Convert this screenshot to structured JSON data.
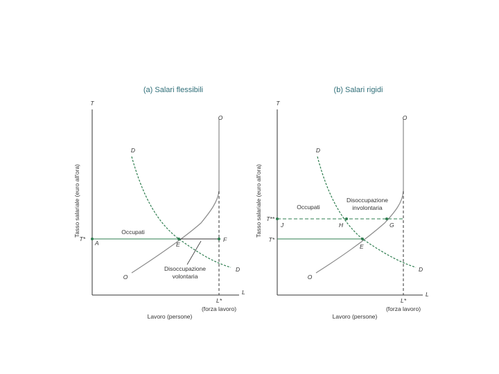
{
  "colors": {
    "title": "#2f6e78",
    "demand_curve": "#2e7d4f",
    "supply_curve": "#8a8a8a",
    "axis": "#333333",
    "wage_line": "#2e7d4f"
  },
  "panel_a": {
    "title": "(a) Salari flessibili",
    "y_axis_symbol": "T",
    "x_axis_symbol": "L",
    "y_axis_label": "Tasso salariale (euro all'ora)",
    "x_axis_label": "Lavoro (persone)",
    "wage_label": "T*",
    "labor_force_label": "L*",
    "labor_force_note": "(forza lavoro)",
    "demand_label_top": "D",
    "demand_label_bottom": "D",
    "supply_label_bottom": "O",
    "supply_label_top": "O",
    "point_a": "A",
    "point_e": "E",
    "point_f": "F",
    "employed_label": "Occupati",
    "unemployment_line1": "Disoccupazione",
    "unemployment_line2": "volontaria"
  },
  "panel_b": {
    "title": "(b) Salari rigidi",
    "y_axis_symbol": "T",
    "x_axis_symbol": "L",
    "y_axis_label": "Tasso salariale (euro all'ora)",
    "x_axis_label": "Lavoro (persone)",
    "rigid_wage_label": "T**",
    "wage_label": "T*",
    "labor_force_label": "L*",
    "labor_force_note": "(forza lavoro)",
    "demand_label_top": "D",
    "demand_label_bottom": "D",
    "supply_label_bottom": "O",
    "supply_label_top": "O",
    "point_j": "J",
    "point_h": "H",
    "point_g": "G",
    "point_e": "E",
    "employed_label": "Occupati",
    "unemployment_line1": "Disoccupazione",
    "unemployment_line2": "involontaria"
  }
}
